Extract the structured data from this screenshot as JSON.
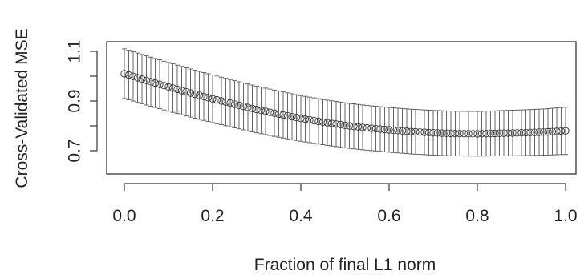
{
  "chart_data": {
    "type": "line",
    "title": "",
    "xlabel": "Fraction of final L1 norm",
    "ylabel": "Cross-Validated MSE",
    "xlim": [
      0.0,
      1.0
    ],
    "ylim": [
      0.6,
      1.15
    ],
    "x_ticks": [
      0.0,
      0.2,
      0.4,
      0.6,
      0.8,
      1.0
    ],
    "x_tick_labels": [
      "0.0",
      "0.2",
      "0.4",
      "0.6",
      "0.8",
      "1.0"
    ],
    "y_ticks": [
      0.7,
      0.9,
      1.1
    ],
    "y_tick_labels": [
      "0.7",
      "0.9",
      "1.1"
    ],
    "y_minor_ticks": [
      0.8,
      1.0
    ],
    "grid": false,
    "legend": "none",
    "marker": "open-circle",
    "error_bars": true,
    "series": [
      {
        "x": [
          0.0,
          0.05,
          0.1,
          0.15,
          0.2,
          0.25,
          0.3,
          0.35,
          0.4,
          0.45,
          0.5,
          0.55,
          0.6,
          0.65,
          0.7,
          0.75,
          0.8,
          0.85,
          0.9,
          0.95,
          1.0
        ],
        "values": [
          1.01,
          0.983,
          0.957,
          0.932,
          0.909,
          0.887,
          0.866,
          0.847,
          0.83,
          0.815,
          0.802,
          0.792,
          0.784,
          0.777,
          0.772,
          0.769,
          0.768,
          0.77,
          0.772,
          0.775,
          0.78
        ],
        "error": [
          0.1,
          0.099,
          0.098,
          0.097,
          0.096,
          0.095,
          0.094,
          0.093,
          0.092,
          0.091,
          0.091,
          0.09,
          0.09,
          0.09,
          0.09,
          0.09,
          0.09,
          0.091,
          0.092,
          0.093,
          0.095
        ]
      }
    ]
  }
}
